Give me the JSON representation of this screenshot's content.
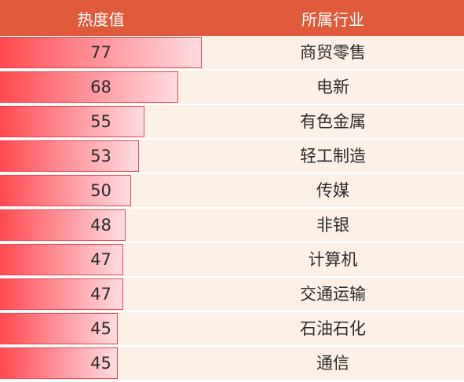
{
  "header": {
    "heat_label": "热度值",
    "industry_label": "所属行业"
  },
  "max_value": 77,
  "rows": [
    {
      "value": "77",
      "industry": "商贸零售"
    },
    {
      "value": "68",
      "industry": "电新"
    },
    {
      "value": "55",
      "industry": "有色金属"
    },
    {
      "value": "53",
      "industry": "轻工制造"
    },
    {
      "value": "50",
      "industry": "传媒"
    },
    {
      "value": "48",
      "industry": "非银"
    },
    {
      "value": "47",
      "industry": "计算机"
    },
    {
      "value": "47",
      "industry": "交通运输"
    },
    {
      "value": "45",
      "industry": "石油石化"
    },
    {
      "value": "45",
      "industry": "通信"
    }
  ],
  "colors": {
    "header_bg": "#e05a3c",
    "row_bg": "#fdf1e7",
    "bar_start": "#fe4a4f",
    "bar_end": "#ffdce0",
    "bar_border": "#e8485a"
  }
}
